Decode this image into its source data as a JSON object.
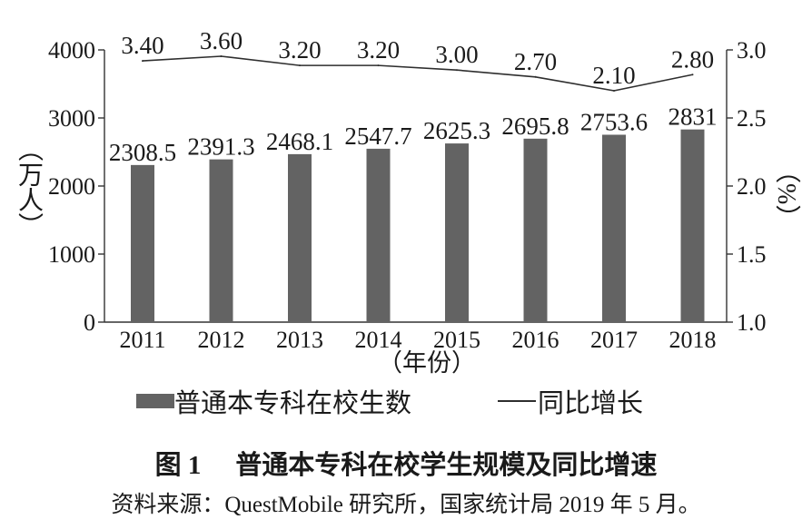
{
  "chart_data": {
    "type": "bar",
    "categories": [
      "2011",
      "2012",
      "2013",
      "2014",
      "2015",
      "2016",
      "2017",
      "2018"
    ],
    "series": [
      {
        "name": "普通本专科在校生数",
        "type": "bar",
        "values": [
          2308.5,
          2391.3,
          2468.1,
          2547.7,
          2625.3,
          2695.8,
          2753.6,
          2831
        ],
        "labels": [
          "2308.5",
          "2391.3",
          "2468.1",
          "2547.7",
          "2625.3",
          "2695.8",
          "2753.6",
          "2831"
        ]
      },
      {
        "name": "同比增长",
        "type": "line",
        "values": [
          3.4,
          3.6,
          3.2,
          3.2,
          3.0,
          2.7,
          2.1,
          2.8
        ],
        "labels": [
          "3.40",
          "3.60",
          "3.20",
          "3.20",
          "3.00",
          "2.70",
          "2.10",
          "2.80"
        ]
      }
    ],
    "xlabel": "（年份）",
    "ylabel": "（万人）",
    "y2label": "（%）",
    "ylim": [
      0,
      4000
    ],
    "y2lim": [
      1.0,
      3.0
    ],
    "yticks": [
      "0",
      "1000",
      "2000",
      "3000",
      "4000"
    ],
    "y2ticks": [
      "1.0",
      "1.5",
      "2.0",
      "2.5",
      "3.0"
    ],
    "grid": false,
    "legend": "bottom",
    "colors": {
      "bar": "#636363",
      "line": "#2e2e2e",
      "axis": "#333333",
      "text": "#1a1a1a"
    }
  },
  "caption": {
    "label": "图 1",
    "text": "普通本专科在校学生规模及同比增速"
  },
  "source": "资料来源：QuestMobile 研究所，国家统计局 2019 年 5 月。"
}
